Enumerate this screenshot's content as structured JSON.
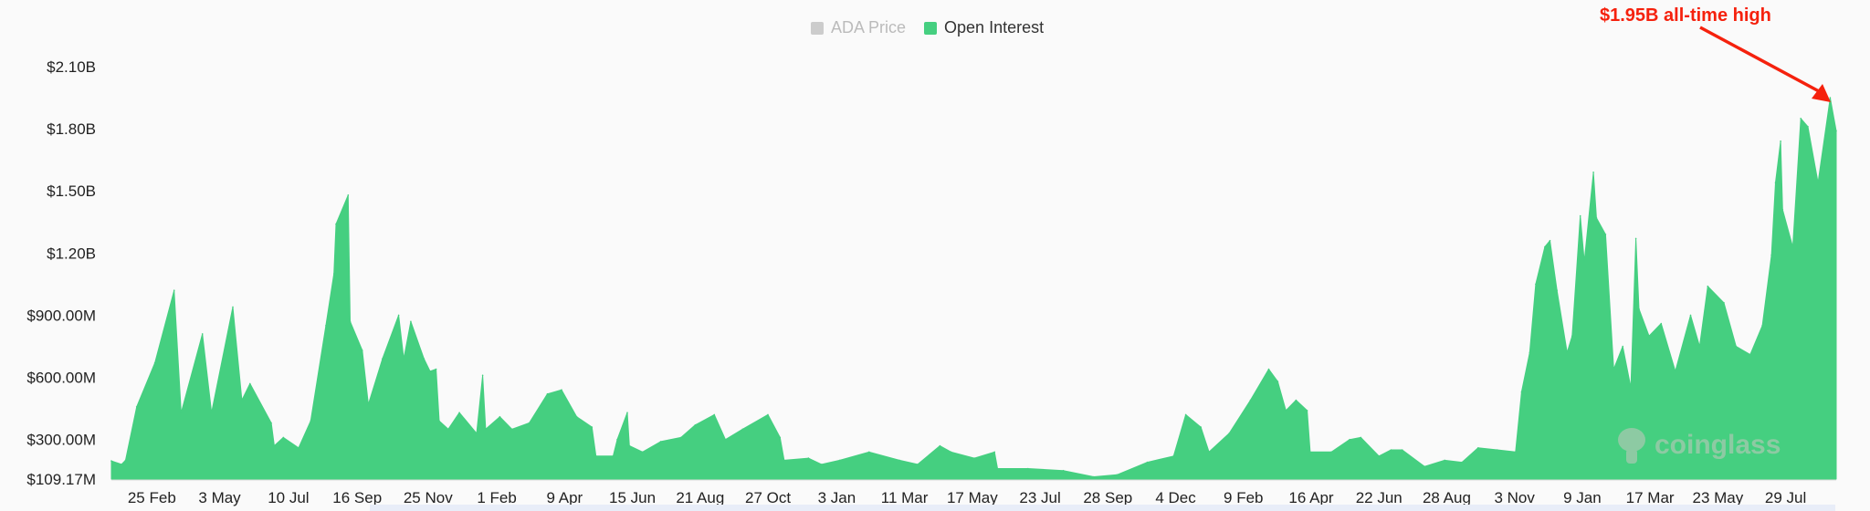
{
  "legend": {
    "items": [
      {
        "label": "ADA Price",
        "color": "#cccccc",
        "active": false
      },
      {
        "label": "Open Interest",
        "color": "#45cf80",
        "active": true
      }
    ]
  },
  "annotation": {
    "text": "$1.95B all-time high",
    "color": "#f5210d"
  },
  "watermark": {
    "text": "coinglass"
  },
  "chart_data": {
    "type": "area",
    "series": [
      {
        "name": "Open Interest",
        "color": "#45cf80",
        "unit": "USD millions"
      }
    ],
    "ylim": [
      109.17,
      2100
    ],
    "y_ticks": [
      {
        "value": 109.17,
        "label": "$109.17M"
      },
      {
        "value": 300,
        "label": "$300.00M"
      },
      {
        "value": 600,
        "label": "$600.00M"
      },
      {
        "value": 900,
        "label": "$900.00M"
      },
      {
        "value": 1200,
        "label": "$1.20B"
      },
      {
        "value": 1500,
        "label": "$1.50B"
      },
      {
        "value": 1800,
        "label": "$1.80B"
      },
      {
        "value": 2100,
        "label": "$2.10B"
      }
    ],
    "xlim": [
      "2021-01-16",
      "2025-09-17"
    ],
    "x_ticks": [
      {
        "date": "2021-02-25",
        "label": "25 Feb"
      },
      {
        "date": "2021-05-03",
        "label": "3 May"
      },
      {
        "date": "2021-07-10",
        "label": "10 Jul"
      },
      {
        "date": "2021-09-16",
        "label": "16 Sep"
      },
      {
        "date": "2021-11-25",
        "label": "25 Nov"
      },
      {
        "date": "2022-02-01",
        "label": "1 Feb"
      },
      {
        "date": "2022-04-09",
        "label": "9 Apr"
      },
      {
        "date": "2022-06-15",
        "label": "15 Jun"
      },
      {
        "date": "2022-08-21",
        "label": "21 Aug"
      },
      {
        "date": "2022-10-27",
        "label": "27 Oct"
      },
      {
        "date": "2023-01-03",
        "label": "3 Jan"
      },
      {
        "date": "2023-03-11",
        "label": "11 Mar"
      },
      {
        "date": "2023-05-17",
        "label": "17 May"
      },
      {
        "date": "2023-07-23",
        "label": "23 Jul"
      },
      {
        "date": "2023-09-28",
        "label": "28 Sep"
      },
      {
        "date": "2023-12-04",
        "label": "4 Dec"
      },
      {
        "date": "2024-02-09",
        "label": "9 Feb"
      },
      {
        "date": "2024-04-16",
        "label": "16 Apr"
      },
      {
        "date": "2024-06-22",
        "label": "22 Jun"
      },
      {
        "date": "2024-08-28",
        "label": "28 Aug"
      },
      {
        "date": "2024-11-03",
        "label": "3 Nov"
      },
      {
        "date": "2025-01-09",
        "label": "9 Jan"
      },
      {
        "date": "2025-03-17",
        "label": "17 Mar"
      },
      {
        "date": "2025-05-23",
        "label": "23 May"
      },
      {
        "date": "2025-07-29",
        "label": "29 Jul"
      }
    ],
    "points": [
      [
        "2021-01-16",
        197
      ],
      [
        "2021-01-26",
        180
      ],
      [
        "2021-01-30",
        200
      ],
      [
        "2021-02-10",
        458
      ],
      [
        "2021-02-28",
        670
      ],
      [
        "2021-03-19",
        1020
      ],
      [
        "2021-03-26",
        430
      ],
      [
        "2021-04-16",
        810
      ],
      [
        "2021-04-25",
        430
      ],
      [
        "2021-05-16",
        940
      ],
      [
        "2021-05-25",
        490
      ],
      [
        "2021-06-02",
        570
      ],
      [
        "2021-06-23",
        380
      ],
      [
        "2021-06-26",
        270
      ],
      [
        "2021-07-05",
        310
      ],
      [
        "2021-07-20",
        260
      ],
      [
        "2021-08-01",
        390
      ],
      [
        "2021-08-16",
        850
      ],
      [
        "2021-08-24",
        1100
      ],
      [
        "2021-08-26",
        1340
      ],
      [
        "2021-09-07",
        1480
      ],
      [
        "2021-09-09",
        870
      ],
      [
        "2021-09-21",
        730
      ],
      [
        "2021-09-27",
        470
      ],
      [
        "2021-10-11",
        690
      ],
      [
        "2021-10-27",
        900
      ],
      [
        "2021-11-01",
        690
      ],
      [
        "2021-11-08",
        870
      ],
      [
        "2021-11-21",
        690
      ],
      [
        "2021-11-27",
        630
      ],
      [
        "2021-12-03",
        640
      ],
      [
        "2021-12-06",
        390
      ],
      [
        "2021-12-15",
        350
      ],
      [
        "2021-12-26",
        430
      ],
      [
        "2022-01-12",
        330
      ],
      [
        "2022-01-18",
        610
      ],
      [
        "2022-01-21",
        350
      ],
      [
        "2022-02-04",
        410
      ],
      [
        "2022-02-16",
        350
      ],
      [
        "2022-03-05",
        380
      ],
      [
        "2022-03-23",
        520
      ],
      [
        "2022-04-06",
        540
      ],
      [
        "2022-04-21",
        410
      ],
      [
        "2022-05-06",
        360
      ],
      [
        "2022-05-10",
        220
      ],
      [
        "2022-05-27",
        220
      ],
      [
        "2022-05-31",
        300
      ],
      [
        "2022-06-10",
        430
      ],
      [
        "2022-06-12",
        270
      ],
      [
        "2022-06-25",
        240
      ],
      [
        "2022-07-13",
        290
      ],
      [
        "2022-08-02",
        310
      ],
      [
        "2022-08-16",
        370
      ],
      [
        "2022-09-04",
        420
      ],
      [
        "2022-09-15",
        300
      ],
      [
        "2022-10-02",
        350
      ],
      [
        "2022-10-27",
        420
      ],
      [
        "2022-11-08",
        310
      ],
      [
        "2022-11-12",
        200
      ],
      [
        "2022-12-06",
        210
      ],
      [
        "2022-12-19",
        180
      ],
      [
        "2023-01-06",
        200
      ],
      [
        "2023-02-04",
        240
      ],
      [
        "2023-03-06",
        200
      ],
      [
        "2023-03-24",
        180
      ],
      [
        "2023-04-15",
        270
      ],
      [
        "2023-04-26",
        240
      ],
      [
        "2023-05-19",
        210
      ],
      [
        "2023-06-08",
        240
      ],
      [
        "2023-06-11",
        160
      ],
      [
        "2023-07-11",
        160
      ],
      [
        "2023-08-15",
        150
      ],
      [
        "2023-09-14",
        120
      ],
      [
        "2023-10-07",
        130
      ],
      [
        "2023-11-06",
        190
      ],
      [
        "2023-12-02",
        220
      ],
      [
        "2023-12-14",
        420
      ],
      [
        "2023-12-29",
        360
      ],
      [
        "2024-01-06",
        240
      ],
      [
        "2024-01-26",
        330
      ],
      [
        "2024-02-16",
        490
      ],
      [
        "2024-03-05",
        640
      ],
      [
        "2024-03-14",
        580
      ],
      [
        "2024-03-22",
        440
      ],
      [
        "2024-04-01",
        490
      ],
      [
        "2024-04-12",
        440
      ],
      [
        "2024-04-15",
        240
      ],
      [
        "2024-05-06",
        240
      ],
      [
        "2024-05-24",
        300
      ],
      [
        "2024-06-04",
        310
      ],
      [
        "2024-06-22",
        220
      ],
      [
        "2024-07-04",
        250
      ],
      [
        "2024-07-15",
        250
      ],
      [
        "2024-08-06",
        170
      ],
      [
        "2024-08-26",
        200
      ],
      [
        "2024-09-12",
        190
      ],
      [
        "2024-09-28",
        260
      ],
      [
        "2024-10-17",
        250
      ],
      [
        "2024-11-04",
        240
      ],
      [
        "2024-11-10",
        530
      ],
      [
        "2024-11-18",
        720
      ],
      [
        "2024-11-24",
        1050
      ],
      [
        "2024-12-03",
        1230
      ],
      [
        "2024-12-08",
        1260
      ],
      [
        "2024-12-15",
        1020
      ],
      [
        "2024-12-25",
        720
      ],
      [
        "2024-12-30",
        800
      ],
      [
        "2025-01-07",
        1380
      ],
      [
        "2025-01-11",
        1160
      ],
      [
        "2025-01-20",
        1590
      ],
      [
        "2025-01-23",
        1370
      ],
      [
        "2025-02-01",
        1290
      ],
      [
        "2025-02-09",
        640
      ],
      [
        "2025-02-18",
        750
      ],
      [
        "2025-02-26",
        550
      ],
      [
        "2025-03-03",
        1270
      ],
      [
        "2025-03-06",
        930
      ],
      [
        "2025-03-16",
        800
      ],
      [
        "2025-03-28",
        860
      ],
      [
        "2025-04-11",
        630
      ],
      [
        "2025-04-26",
        900
      ],
      [
        "2025-05-05",
        750
      ],
      [
        "2025-05-13",
        1040
      ],
      [
        "2025-05-29",
        960
      ],
      [
        "2025-06-10",
        750
      ],
      [
        "2025-06-24",
        710
      ],
      [
        "2025-07-06",
        850
      ],
      [
        "2025-07-15",
        1190
      ],
      [
        "2025-07-19",
        1540
      ],
      [
        "2025-07-24",
        1740
      ],
      [
        "2025-07-26",
        1410
      ],
      [
        "2025-08-05",
        1230
      ],
      [
        "2025-08-13",
        1850
      ],
      [
        "2025-08-20",
        1810
      ],
      [
        "2025-08-30",
        1540
      ],
      [
        "2025-09-11",
        1950
      ],
      [
        "2025-09-17",
        1790
      ]
    ],
    "grid": false,
    "legend_position": "top-center"
  }
}
